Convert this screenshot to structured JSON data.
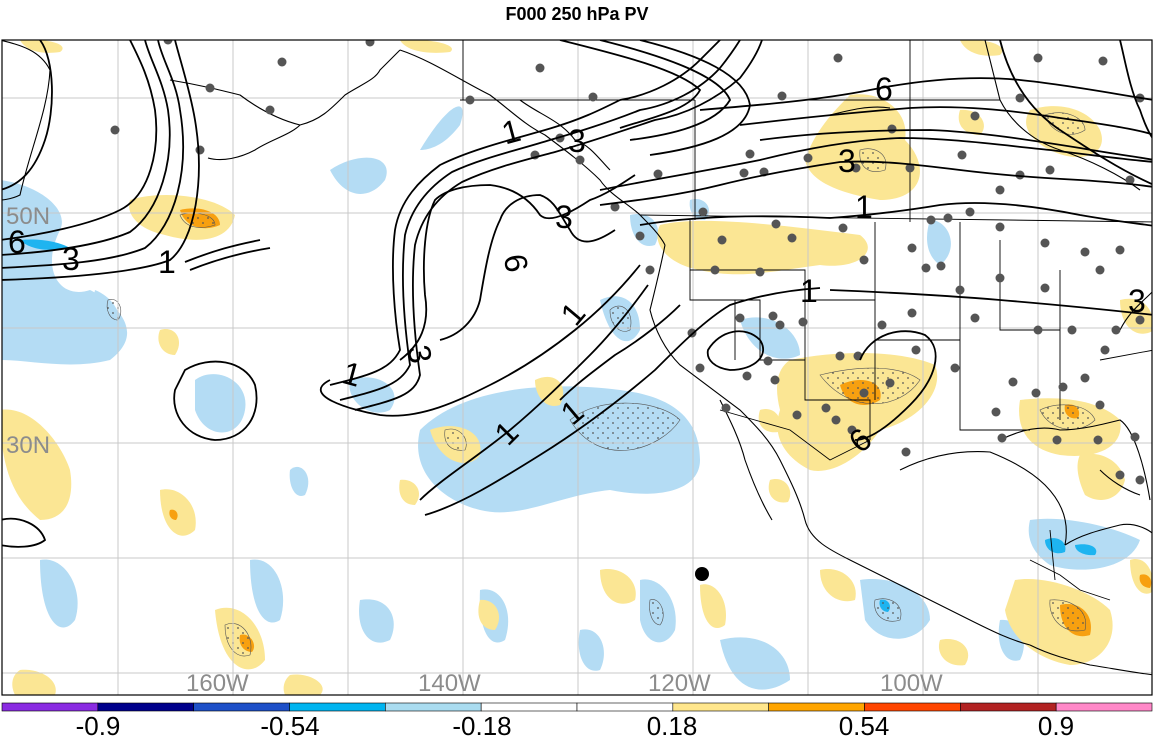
{
  "title": "F000 250 hPa PV",
  "lat_labels": [
    "50N",
    "30N"
  ],
  "lon_labels": [
    "160W",
    "140W",
    "120W",
    "100W"
  ],
  "contour_labels": [
    "6",
    "3",
    "1",
    "6",
    "3",
    "1",
    "3",
    "6",
    "1",
    "3",
    "1",
    "1",
    "3",
    "6",
    "3",
    "1",
    "1",
    "1"
  ],
  "colorbar": {
    "tick_labels": [
      "-0.9",
      "-0.54",
      "-0.18",
      "0.18",
      "0.54",
      "0.9"
    ],
    "colors": [
      "#8a2be2",
      "#00008b",
      "#1e50c8",
      "#00b4f0",
      "#aadcf0",
      "#ffffff",
      "#ffffff",
      "#ffe68c",
      "#ffa500",
      "#ff4500",
      "#b22222",
      "#ff88c8"
    ]
  },
  "colors": {
    "positive_light": "#fbe694",
    "positive_strong": "#f7a010",
    "negative_light": "#b4dcf4",
    "negative_strong": "#1eb4f0",
    "grid": "#c8c8c8",
    "coast": "#000000",
    "station": "#555555"
  }
}
